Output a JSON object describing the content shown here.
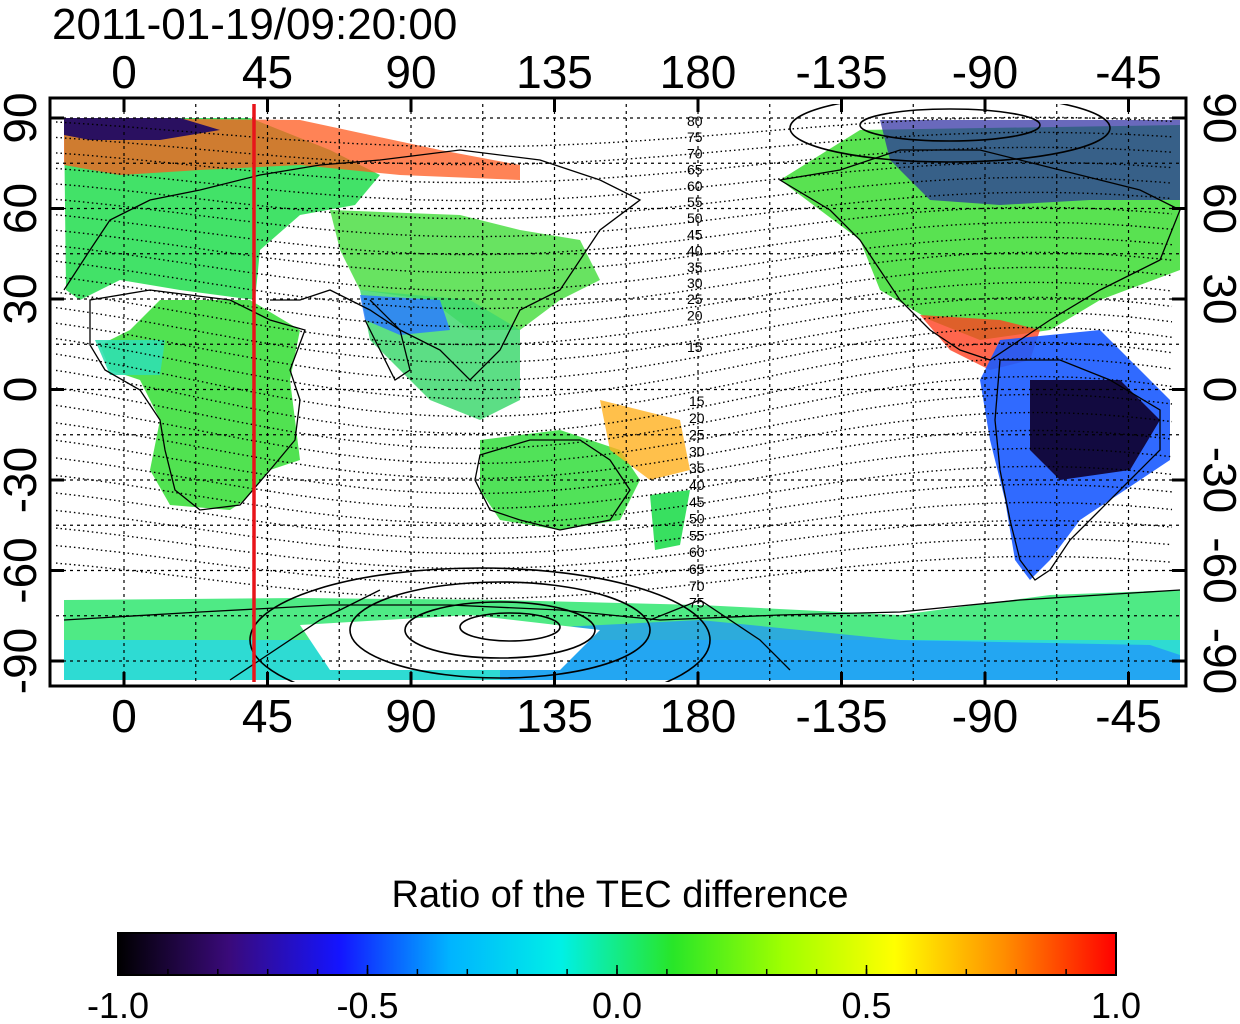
{
  "timestamp": "2011-01-19/09:20:00",
  "map": {
    "x_ticks_top": [
      "0",
      "45",
      "90",
      "135",
      "180",
      "-135",
      "-90",
      "-45"
    ],
    "x_ticks_bottom": [
      "0",
      "45",
      "90",
      "135",
      "180",
      "-135",
      "-90",
      "-45"
    ],
    "y_ticks_left": [
      "90",
      "60",
      "30",
      "0",
      "-30",
      "-60",
      "-90"
    ],
    "y_ticks_right": [
      "90",
      "60",
      "30",
      "0",
      "-30",
      "-60",
      "-90"
    ],
    "contour_labels_north": [
      "80",
      "75",
      "70",
      "65",
      "60",
      "55",
      "50",
      "45",
      "40",
      "35",
      "30",
      "25",
      "20",
      "15"
    ],
    "contour_labels_south": [
      "15",
      "20",
      "25",
      "30",
      "35",
      "40",
      "45",
      "50",
      "55",
      "60",
      "65",
      "70",
      "75"
    ],
    "marker_line_longitude": 40,
    "marker_line_color": "#e8141a"
  },
  "colorbar": {
    "title": "Ratio of the TEC difference",
    "min": -1.0,
    "max": 1.0,
    "tick_labels": [
      "-1.0",
      "-0.5",
      "0.0",
      "0.5",
      "1.0"
    ],
    "colormap": [
      "#000000",
      "#3a0a7a",
      "#1414ff",
      "#00b4ff",
      "#00f0e6",
      "#28e628",
      "#a0ff00",
      "#ffff00",
      "#ff8c00",
      "#ff0000"
    ]
  }
}
